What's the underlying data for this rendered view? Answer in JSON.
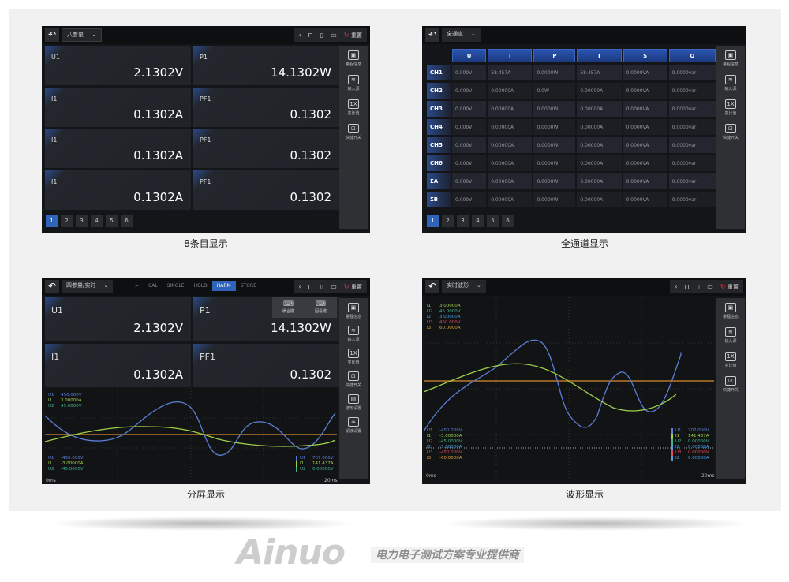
{
  "watermark": {
    "brand": "Ainuo",
    "tagline": "电力电子测试方案专业提供商"
  },
  "common": {
    "reset_label": "重置",
    "toolbar_icons": [
      "chevron-left-icon",
      "lock-icon",
      "usb-icon",
      "monitor-icon"
    ],
    "pages": [
      "1",
      "2",
      "3",
      "4",
      "5",
      "6"
    ],
    "active_page": "1"
  },
  "panel1": {
    "caption": "8条目显示",
    "select": "八参量",
    "cards": [
      {
        "label": "U1",
        "value": "2.1302V"
      },
      {
        "label": "P1",
        "value": "14.1302W"
      },
      {
        "label": "I1",
        "value": "0.1302A"
      },
      {
        "label": "PF1",
        "value": "0.1302"
      },
      {
        "label": "I1",
        "value": "0.1302A"
      },
      {
        "label": "PF1",
        "value": "0.1302"
      },
      {
        "label": "I1",
        "value": "0.1302A"
      },
      {
        "label": "PF1",
        "value": "0.1302"
      }
    ],
    "sidebar": [
      "量程信息",
      "输入源",
      "变比值",
      "快捷开关"
    ]
  },
  "panel2": {
    "caption": "全通道显示",
    "select": "全通道",
    "columns": [
      "U",
      "I",
      "P",
      "I",
      "S",
      "Q"
    ],
    "rows": [
      {
        "ch": "CH1",
        "cells": [
          "0.000V",
          "58.457A",
          "0.0000W",
          "58.457A",
          "0.0000VA",
          "0.0000var"
        ]
      },
      {
        "ch": "CH2",
        "cells": [
          "0.000V",
          "0.00000A",
          "0.0W",
          "0.00000A",
          "0.0000VA",
          "0.0000var"
        ]
      },
      {
        "ch": "CH3",
        "cells": [
          "0.000V",
          "0.00000A",
          "0.0000W",
          "0.00000A",
          "0.0000VA",
          "0.0000var"
        ]
      },
      {
        "ch": "CH4",
        "cells": [
          "0.000V",
          "0.00000A",
          "0.0000W",
          "0.00000A",
          "0.0000VA",
          "0.0000var"
        ]
      },
      {
        "ch": "CH5",
        "cells": [
          "0.000V",
          "0.00000A",
          "0.0000W",
          "0.00000A",
          "0.0000VA",
          "0.0000var"
        ]
      },
      {
        "ch": "CH6",
        "cells": [
          "0.000V",
          "0.00000A",
          "0.0000W",
          "0.00000A",
          "0.0000VA",
          "0.0000var"
        ]
      },
      {
        "ch": "ΣA",
        "cells": [
          "0.000V",
          "0.00000A",
          "0.0000W",
          "0.00000A",
          "0.0000VA",
          "0.0000var"
        ]
      },
      {
        "ch": "ΣB",
        "cells": [
          "0.000V",
          "0.00000A",
          "0.0000W",
          "0.00000A",
          "0.0000VA",
          "0.0000var"
        ]
      }
    ],
    "sidebar": [
      "量程信息",
      "输入源",
      "变比值",
      "快捷开关"
    ]
  },
  "panel3": {
    "caption": "分屏显示",
    "select": "四参量/实时",
    "nav_arrow": ">",
    "modes": [
      "CAL",
      "SINGLE",
      "HOLD",
      "HARM",
      "STORE"
    ],
    "active_mode": "HARM",
    "cards": [
      {
        "label": "U1",
        "value": "2.1302V"
      },
      {
        "label": "P1",
        "value": "14.1302W"
      },
      {
        "label": "I1",
        "value": "0.1302A"
      },
      {
        "label": "PF1",
        "value": "0.1302"
      }
    ],
    "popup": [
      "缓合键",
      "回看键"
    ],
    "sidebar": [
      "量程信息",
      "输入源",
      "变比值",
      "快捷开关",
      "波形设置",
      "滤波设置"
    ],
    "top_readout": [
      {
        "n": "U1",
        "v": "450.000V"
      },
      {
        "n": "I1",
        "v": "3.00000A"
      },
      {
        "n": "U2",
        "v": "45.0000V"
      }
    ],
    "bottom_readout": [
      {
        "n": "U1",
        "v": "-450.000V"
      },
      {
        "n": "I1",
        "v": "-3.00000A"
      },
      {
        "n": "U2",
        "v": "-45.0000V"
      }
    ],
    "legend": [
      {
        "n": "U1",
        "v": "707.000V"
      },
      {
        "n": "I1",
        "v": "141.437A"
      },
      {
        "n": "U2",
        "v": "0.00000V"
      }
    ],
    "time_start": "0ms",
    "time_end": "20ms"
  },
  "panel4": {
    "caption": "波形显示",
    "select": "实时波形",
    "sidebar": [
      "量程信息",
      "输入源",
      "变比值",
      "快捷开关"
    ],
    "top_readout": [
      {
        "n": "I1",
        "v": "3.00000A"
      },
      {
        "n": "U2",
        "v": "45.0000V"
      },
      {
        "n": "I2",
        "v": "3.00000A"
      },
      {
        "n": "U3",
        "v": "450.000V"
      },
      {
        "n": "I3",
        "v": "60.0000A"
      }
    ],
    "bottom_readout": [
      {
        "n": "U1",
        "v": "-450.000V"
      },
      {
        "n": "I1",
        "v": "-3.00000A"
      },
      {
        "n": "U2",
        "v": "-45.0000V"
      },
      {
        "n": "I2",
        "v": "-3.00000A"
      },
      {
        "n": "U3",
        "v": "-450.000V"
      },
      {
        "n": "I3",
        "v": "-60.0000A"
      }
    ],
    "legend": [
      {
        "n": "U1",
        "v": "707.000V"
      },
      {
        "n": "I1",
        "v": "141.437A"
      },
      {
        "n": "U2",
        "v": "0.00000V"
      },
      {
        "n": "I2",
        "v": "0.00000A"
      },
      {
        "n": "U3",
        "v": "0.00000V"
      },
      {
        "n": "I2",
        "v": "0.00000A"
      }
    ],
    "time_start": "0ms",
    "time_end": "20ms"
  },
  "colors": {
    "accent": "#2f64b8",
    "u1": "#5b7fd6",
    "i1": "#9ed04a",
    "u2": "#3fb38a",
    "i2": "#4aa0e0",
    "u3": "#e04a5a",
    "i3": "#e0a040",
    "ref_line": "#d98a30",
    "reset": "#e33344"
  }
}
